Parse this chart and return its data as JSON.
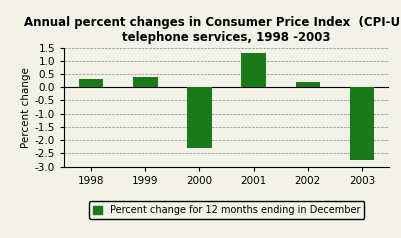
{
  "categories": [
    "1998",
    "1999",
    "2000",
    "2001",
    "2002",
    "2003"
  ],
  "values": [
    0.3,
    0.38,
    -2.3,
    1.3,
    0.2,
    -2.75
  ],
  "bar_color": "#1a7a1a",
  "title_line1": "Annual percent changes in Consumer Price Index  (CPI-U) for",
  "title_line2": "telephone services, 1998 -2003",
  "ylabel": "Percent change",
  "ylim": [
    -3.0,
    1.5
  ],
  "yticks": [
    -3.0,
    -2.5,
    -2.0,
    -1.5,
    -1.0,
    -0.5,
    0.0,
    0.5,
    1.0,
    1.5
  ],
  "ytick_labels": [
    "-3.0",
    "-2.5",
    "-2.0",
    "-1.5",
    "-1.0",
    "-0.5",
    "0.0",
    "0.5",
    "1.0",
    "1.5"
  ],
  "legend_label": "Percent change for 12 months ending in December",
  "background_color": "#f2f2e8",
  "title_fontsize": 8.5,
  "axis_fontsize": 7.5,
  "tick_fontsize": 7.5
}
